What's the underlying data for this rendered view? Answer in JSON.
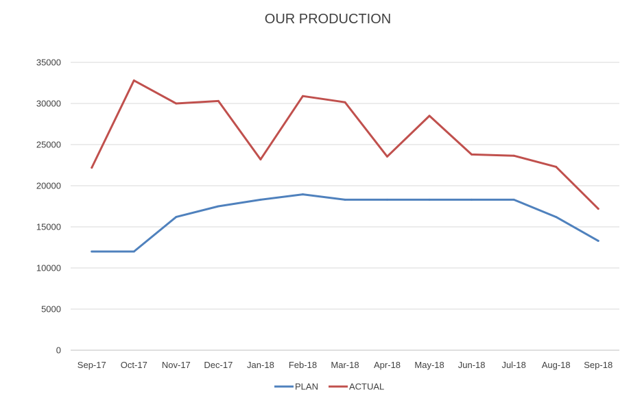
{
  "chart_data": {
    "type": "line",
    "title": "OUR PRODUCTION",
    "xlabel": "",
    "ylabel": "",
    "categories": [
      "Sep-17",
      "Oct-17",
      "Nov-17",
      "Dec-17",
      "Jan-18",
      "Feb-18",
      "Mar-18",
      "Apr-18",
      "May-18",
      "Jun-18",
      "Jul-18",
      "Aug-18",
      "Sep-18"
    ],
    "ylim": [
      0,
      35000
    ],
    "yticks": [
      0,
      5000,
      10000,
      15000,
      20000,
      25000,
      30000,
      35000
    ],
    "grid": true,
    "legend_position": "bottom",
    "series": [
      {
        "name": "PLAN",
        "color": "#4f81bd",
        "values": [
          12000,
          12000,
          16200,
          17500,
          18300,
          18950,
          18300,
          18300,
          18300,
          18300,
          18300,
          16200,
          13300
        ]
      },
      {
        "name": "ACTUAL",
        "color": "#c0504d",
        "values": [
          22200,
          32800,
          30000,
          30300,
          23200,
          30900,
          30150,
          23550,
          28500,
          23800,
          23650,
          22300,
          17200
        ]
      }
    ]
  }
}
